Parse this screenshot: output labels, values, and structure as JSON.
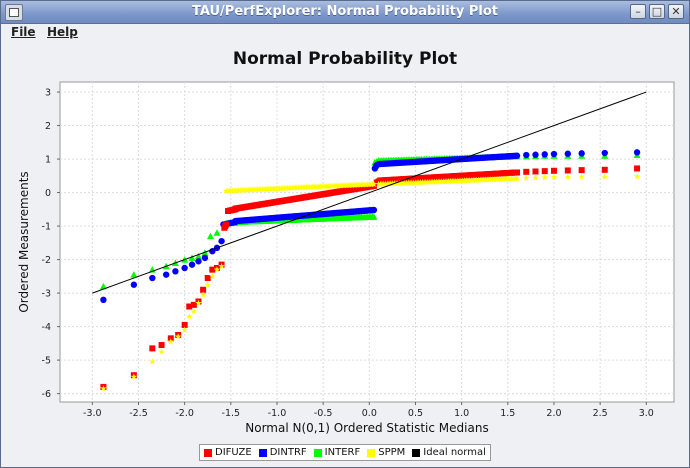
{
  "window": {
    "title": "TAU/PerfExplorer: Normal Probability Plot",
    "minimize_glyph": "–",
    "maximize_glyph": "□",
    "close_glyph": "✕"
  },
  "menu": {
    "file": "File",
    "help": "Help"
  },
  "chart_data": {
    "type": "scatter",
    "title": "Normal Probability Plot",
    "xlabel": "Normal N(0,1) Ordered Statistic Medians",
    "ylabel": "Ordered Measurements",
    "xlim": [
      -3.35,
      3.3
    ],
    "ylim": [
      -6.25,
      3.3
    ],
    "xticks": [
      "-3.0",
      "-2.5",
      "-2.0",
      "-1.5",
      "-1.0",
      "-0.5",
      "0.0",
      "0.5",
      "1.0",
      "1.5",
      "2.0",
      "2.5",
      "3.0"
    ],
    "yticks": [
      "-6",
      "-5",
      "-4",
      "-3",
      "-2",
      "-1",
      "0",
      "1",
      "2",
      "3"
    ],
    "grid": true,
    "legend_placement": "bottom",
    "ideal_line": {
      "name": "Ideal normal",
      "color": "#000000",
      "x": [
        -3.0,
        3.0
      ],
      "y": [
        -3.0,
        3.0
      ]
    },
    "series": [
      {
        "name": "DIFUZE",
        "color": "#ff0000",
        "marker": "square",
        "points": [
          [
            -2.88,
            -5.8
          ],
          [
            -2.55,
            -5.45
          ],
          [
            -2.35,
            -4.65
          ],
          [
            -2.25,
            -4.55
          ],
          [
            -2.15,
            -4.35
          ],
          [
            -2.07,
            -4.25
          ],
          [
            -2.0,
            -3.95
          ],
          [
            -1.95,
            -3.4
          ],
          [
            -1.9,
            -3.35
          ],
          [
            -1.85,
            -3.25
          ],
          [
            -1.8,
            -2.9
          ],
          [
            -1.75,
            -2.55
          ],
          [
            -1.7,
            -2.3
          ],
          [
            -1.65,
            -2.25
          ],
          [
            -1.6,
            -2.15
          ]
        ],
        "segments": [
          {
            "x": [
              -1.57,
              -1.55
            ],
            "y": [
              -1.05,
              -0.95
            ],
            "n": 3
          },
          {
            "x": [
              -1.53,
              -1.45
            ],
            "y": [
              -0.55,
              -0.5
            ],
            "n": 5
          },
          {
            "x": [
              -1.45,
              0.05
            ],
            "y": [
              -0.48,
              0.2
            ],
            "n": 90
          },
          {
            "x": [
              0.08,
              0.12
            ],
            "y": [
              0.3,
              0.36
            ],
            "n": 3
          },
          {
            "x": [
              0.12,
              1.6
            ],
            "y": [
              0.36,
              0.6
            ],
            "n": 80
          }
        ],
        "tail": [
          [
            1.7,
            0.62
          ],
          [
            1.8,
            0.63
          ],
          [
            1.9,
            0.64
          ],
          [
            2.0,
            0.65
          ],
          [
            2.15,
            0.66
          ],
          [
            2.3,
            0.67
          ],
          [
            2.55,
            0.68
          ],
          [
            2.9,
            0.72
          ]
        ]
      },
      {
        "name": "DINTRF",
        "color": "#0000ff",
        "marker": "circle",
        "points": [
          [
            -2.88,
            -3.2
          ],
          [
            -2.55,
            -2.75
          ],
          [
            -2.35,
            -2.55
          ],
          [
            -2.2,
            -2.45
          ],
          [
            -2.1,
            -2.35
          ],
          [
            -2.0,
            -2.25
          ],
          [
            -1.92,
            -2.15
          ],
          [
            -1.85,
            -2.05
          ],
          [
            -1.78,
            -1.95
          ],
          [
            -1.7,
            -1.75
          ],
          [
            -1.65,
            -1.65
          ],
          [
            -1.6,
            -1.45
          ]
        ],
        "segments": [
          {
            "x": [
              -1.58,
              -1.45
            ],
            "y": [
              -0.95,
              -0.88
            ],
            "n": 6
          },
          {
            "x": [
              -1.45,
              0.05
            ],
            "y": [
              -0.85,
              -0.52
            ],
            "n": 90
          },
          {
            "x": [
              0.06,
              0.08
            ],
            "y": [
              0.72,
              0.82
            ],
            "n": 3
          },
          {
            "x": [
              0.1,
              1.6
            ],
            "y": [
              0.85,
              1.1
            ],
            "n": 85
          }
        ],
        "tail": [
          [
            1.7,
            1.12
          ],
          [
            1.8,
            1.13
          ],
          [
            1.9,
            1.14
          ],
          [
            2.0,
            1.15
          ],
          [
            2.15,
            1.16
          ],
          [
            2.3,
            1.17
          ],
          [
            2.55,
            1.18
          ],
          [
            2.9,
            1.2
          ]
        ]
      },
      {
        "name": "INTERF",
        "color": "#00ff00",
        "marker": "triangle",
        "points": [
          [
            -2.88,
            -2.8
          ],
          [
            -2.55,
            -2.45
          ],
          [
            -2.35,
            -2.3
          ],
          [
            -2.2,
            -2.2
          ],
          [
            -2.1,
            -2.1
          ],
          [
            -2.0,
            -2.0
          ],
          [
            -1.92,
            -1.95
          ],
          [
            -1.85,
            -1.9
          ],
          [
            -1.78,
            -1.8
          ],
          [
            -1.72,
            -1.3
          ],
          [
            -1.65,
            -1.2
          ]
        ],
        "segments": [
          {
            "x": [
              -1.55,
              -1.45
            ],
            "y": [
              -0.92,
              -0.9
            ],
            "n": 5
          },
          {
            "x": [
              -1.45,
              0.05
            ],
            "y": [
              -0.88,
              -0.72
            ],
            "n": 90
          },
          {
            "x": [
              0.06,
              0.1
            ],
            "y": [
              0.9,
              0.95
            ],
            "n": 3
          },
          {
            "x": [
              0.1,
              1.6
            ],
            "y": [
              0.95,
              1.08
            ],
            "n": 85
          }
        ],
        "tail": [
          [
            1.7,
            1.08
          ],
          [
            1.8,
            1.09
          ],
          [
            1.9,
            1.1
          ],
          [
            2.0,
            1.1
          ],
          [
            2.15,
            1.1
          ],
          [
            2.3,
            1.1
          ],
          [
            2.55,
            1.1
          ],
          [
            2.9,
            1.12
          ]
        ]
      },
      {
        "name": "SPPM",
        "color": "#ffff00",
        "marker": "star",
        "points": [
          [
            -2.88,
            -5.85
          ],
          [
            -2.55,
            -5.5
          ],
          [
            -2.35,
            -5.05
          ],
          [
            -2.25,
            -4.75
          ],
          [
            -2.15,
            -4.45
          ],
          [
            -2.07,
            -4.3
          ],
          [
            -2.0,
            -4.1
          ],
          [
            -1.95,
            -3.7
          ],
          [
            -1.9,
            -3.55
          ],
          [
            -1.85,
            -3.3
          ],
          [
            -1.8,
            -3.05
          ],
          [
            -1.75,
            -2.75
          ],
          [
            -1.7,
            -2.5
          ],
          [
            -1.65,
            -2.3
          ],
          [
            -1.6,
            -2.2
          ]
        ],
        "segments": [
          {
            "x": [
              -1.55,
              0.05
            ],
            "y": [
              0.05,
              0.25
            ],
            "n": 95
          },
          {
            "x": [
              0.1,
              1.6
            ],
            "y": [
              0.25,
              0.42
            ],
            "n": 80
          }
        ],
        "tail": [
          [
            1.7,
            0.43
          ],
          [
            1.8,
            0.44
          ],
          [
            1.9,
            0.45
          ],
          [
            2.0,
            0.46
          ],
          [
            2.15,
            0.46
          ],
          [
            2.3,
            0.47
          ],
          [
            2.55,
            0.47
          ],
          [
            2.9,
            0.48
          ]
        ]
      }
    ]
  }
}
